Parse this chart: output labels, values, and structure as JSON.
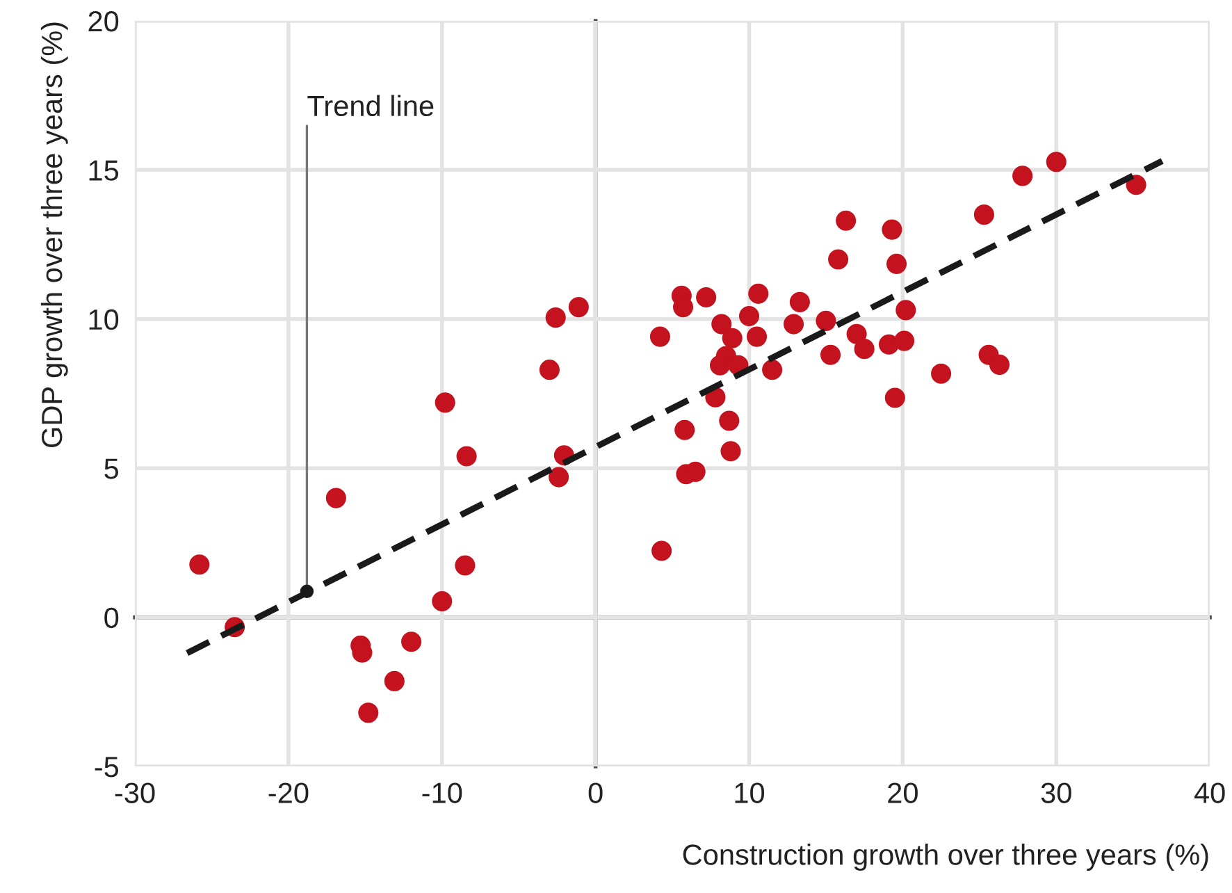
{
  "chart_data": {
    "type": "scatter",
    "xlabel": "Construction growth over three years (%)",
    "ylabel": "GDP growth over three years (%)",
    "xlim": [
      -30,
      40
    ],
    "ylim": [
      -5,
      20
    ],
    "xticks": [
      -30,
      -20,
      -10,
      0,
      10,
      20,
      30,
      40
    ],
    "yticks": [
      -5,
      0,
      5,
      10,
      15,
      20
    ],
    "grid": true,
    "legend": false,
    "annotations": [
      {
        "text": "Trend line",
        "x": -18.8,
        "y": 0.87
      }
    ],
    "series": [
      {
        "color": "#c4121f",
        "marker": "circle",
        "x": [
          -25.8,
          -23.5,
          -16.9,
          -15.3,
          -15.2,
          -12.0,
          -13.1,
          -14.8,
          -9.8,
          -8.4,
          -8.5,
          -10.0,
          -2.6,
          -1.1,
          -3.0,
          -2.05,
          -2.4,
          35.2,
          30.0,
          27.8,
          25.3,
          16.3,
          19.3,
          15.8,
          19.6,
          5.6,
          5.7,
          7.2,
          10.6,
          13.3,
          4.2,
          8.2,
          10.0,
          8.9,
          10.5,
          12.9,
          15.0,
          20.2,
          17.0,
          17.5,
          19.1,
          20.1,
          8.5,
          8.1,
          9.3,
          11.5,
          15.3,
          25.6,
          26.3,
          22.5,
          7.8,
          19.5,
          8.7,
          5.8,
          8.8,
          5.9,
          6.5,
          4.3
        ],
        "values": [
          1.77,
          -0.33,
          4.0,
          -0.95,
          -1.18,
          -0.82,
          -2.14,
          -3.2,
          7.2,
          5.4,
          1.74,
          0.54,
          10.05,
          10.4,
          8.3,
          5.43,
          4.7,
          14.5,
          15.27,
          14.8,
          13.5,
          13.3,
          13.0,
          12.0,
          11.85,
          10.78,
          10.4,
          10.73,
          10.85,
          10.57,
          9.41,
          9.83,
          10.1,
          9.36,
          9.41,
          9.83,
          9.94,
          10.3,
          9.5,
          9.0,
          9.15,
          9.27,
          8.76,
          8.45,
          8.45,
          8.3,
          8.8,
          8.8,
          8.47,
          8.17,
          7.38,
          7.36,
          6.59,
          6.28,
          5.57,
          4.8,
          4.88,
          2.23
        ]
      },
      {
        "type": "line",
        "color": "#1a1a1a",
        "line_style": "dashed",
        "marker": "none",
        "x": [
          -26.6,
          36.9
        ],
        "values": [
          -1.2,
          15.3
        ]
      }
    ]
  }
}
